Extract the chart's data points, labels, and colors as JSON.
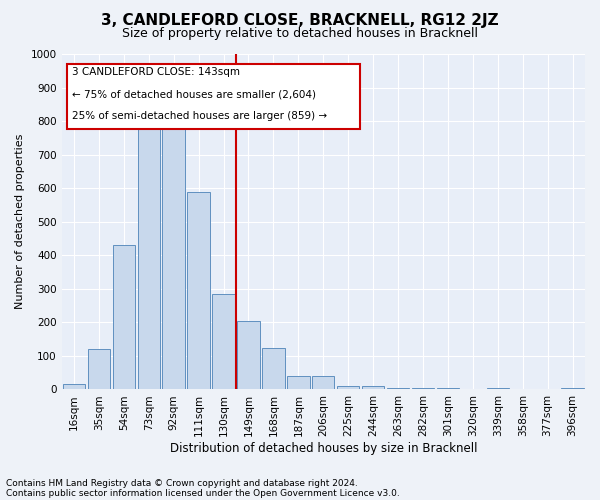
{
  "title": "3, CANDLEFORD CLOSE, BRACKNELL, RG12 2JZ",
  "subtitle": "Size of property relative to detached houses in Bracknell",
  "xlabel": "Distribution of detached houses by size in Bracknell",
  "ylabel": "Number of detached properties",
  "footnote1": "Contains HM Land Registry data © Crown copyright and database right 2024.",
  "footnote2": "Contains public sector information licensed under the Open Government Licence v3.0.",
  "annotation_line1": "3 CANDLEFORD CLOSE: 143sqm",
  "annotation_line2": "← 75% of detached houses are smaller (2,604)",
  "annotation_line3": "25% of semi-detached houses are larger (859) →",
  "bar_color": "#c8d8ec",
  "bar_edge_color": "#6090c0",
  "vline_color": "#cc0000",
  "annotation_box_edgecolor": "#cc0000",
  "annotation_box_facecolor": "#ffffff",
  "categories": [
    "16sqm",
    "35sqm",
    "54sqm",
    "73sqm",
    "92sqm",
    "111sqm",
    "130sqm",
    "149sqm",
    "168sqm",
    "187sqm",
    "206sqm",
    "225sqm",
    "244sqm",
    "263sqm",
    "282sqm",
    "301sqm",
    "320sqm",
    "339sqm",
    "358sqm",
    "377sqm",
    "396sqm"
  ],
  "values": [
    15,
    120,
    430,
    790,
    810,
    590,
    285,
    205,
    125,
    40,
    40,
    10,
    10,
    5,
    5,
    5,
    0,
    5,
    0,
    0,
    5
  ],
  "ylim": [
    0,
    1000
  ],
  "yticks": [
    0,
    100,
    200,
    300,
    400,
    500,
    600,
    700,
    800,
    900,
    1000
  ],
  "vline_x": 6.5,
  "background_color": "#eef2f8",
  "plot_bg_color": "#e8eef8",
  "title_fontsize": 11,
  "subtitle_fontsize": 9,
  "ylabel_fontsize": 8,
  "xlabel_fontsize": 8.5,
  "tick_fontsize": 7.5,
  "annotation_fontsize": 7.5,
  "footnote_fontsize": 6.5
}
